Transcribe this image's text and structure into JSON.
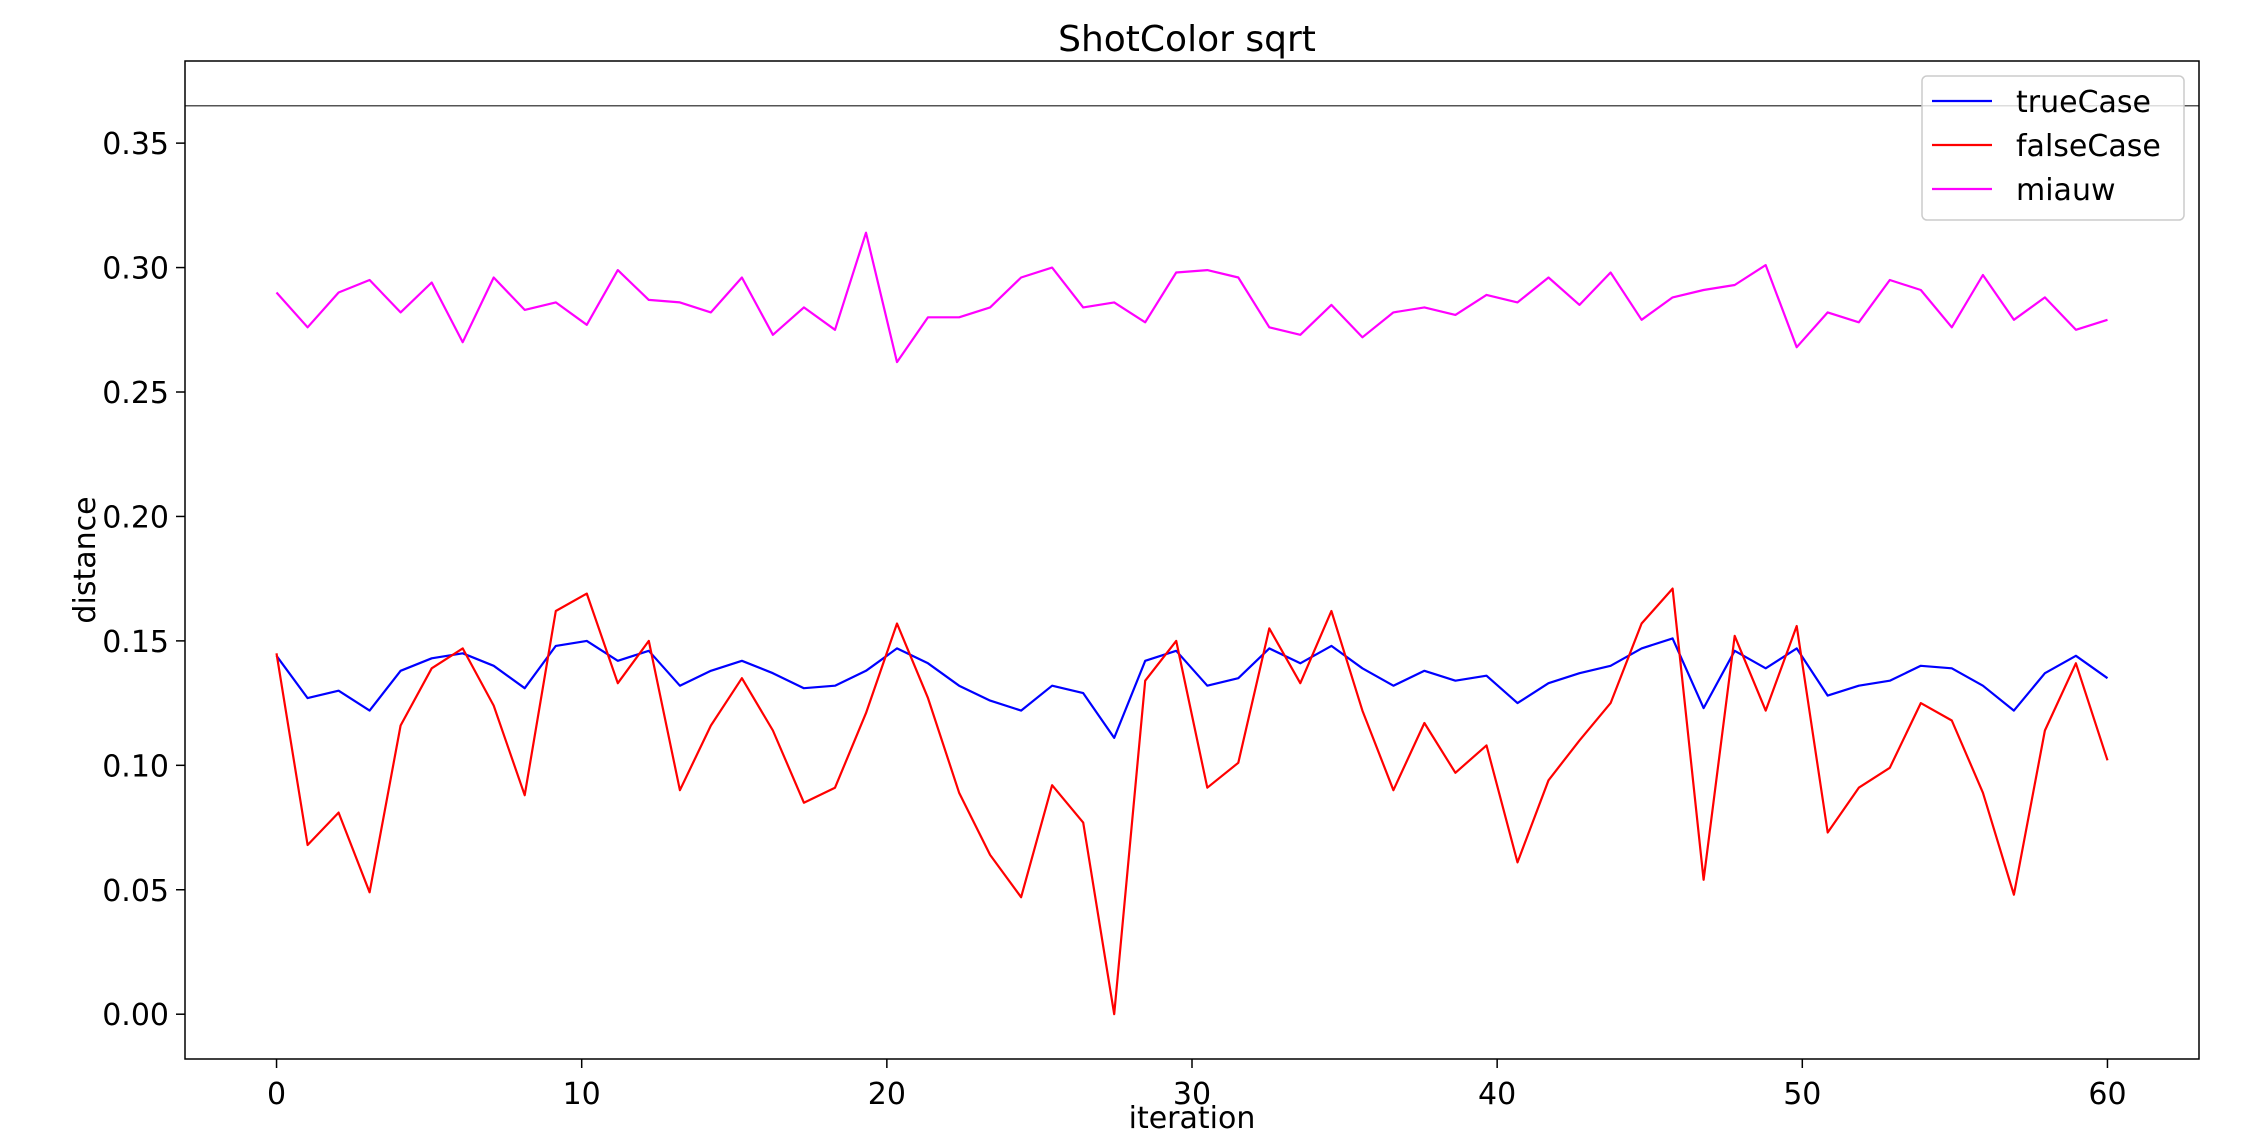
{
  "chart_data": {
    "type": "line",
    "title": "ShotColor sqrt",
    "xlabel": "iteration",
    "ylabel": "distance",
    "xlim": [
      -3,
      63
    ],
    "ylim": [
      -0.018,
      0.383
    ],
    "xticks": [
      0,
      10,
      20,
      30,
      40,
      50,
      60
    ],
    "xtick_labels": [
      "0",
      "10",
      "20",
      "30",
      "40",
      "50",
      "60"
    ],
    "yticks": [
      0.0,
      0.05,
      0.1,
      0.15,
      0.2,
      0.25,
      0.3,
      0.35
    ],
    "ytick_labels": [
      "0.00",
      "0.05",
      "0.10",
      "0.15",
      "0.20",
      "0.25",
      "0.30",
      "0.35"
    ],
    "grid": false,
    "legend_position": "top-right",
    "reference_line": {
      "y": 0.365,
      "color": "#555555"
    },
    "x": [
      0,
      1.0167,
      2.0333,
      3.05,
      4.0667,
      5.0833,
      6.1,
      7.1167,
      8.1333,
      9.15,
      10.1667,
      11.1833,
      12.2,
      13.2167,
      14.2333,
      15.25,
      16.2667,
      17.2833,
      18.3,
      19.3167,
      20.3333,
      21.35,
      22.3667,
      23.3833,
      24.4,
      25.4167,
      26.4333,
      27.45,
      28.4667,
      29.4833,
      30.5,
      31.5167,
      32.5333,
      33.55,
      34.5667,
      35.5833,
      36.6,
      37.6167,
      38.6333,
      39.65,
      40.6667,
      41.6833,
      42.7,
      43.7167,
      44.7333,
      45.75,
      46.7667,
      47.7833,
      48.8,
      49.8167,
      50.8333,
      51.85,
      52.8667,
      53.8833,
      54.9,
      55.9167,
      56.9333,
      57.95,
      58.9667,
      60
    ],
    "series": [
      {
        "name": "trueCase",
        "color": "#0000ff",
        "values": [
          0.144,
          0.127,
          0.13,
          0.122,
          0.138,
          0.143,
          0.145,
          0.14,
          0.131,
          0.148,
          0.15,
          0.142,
          0.146,
          0.132,
          0.138,
          0.142,
          0.137,
          0.131,
          0.132,
          0.138,
          0.147,
          0.141,
          0.132,
          0.126,
          0.122,
          0.132,
          0.129,
          0.111,
          0.142,
          0.146,
          0.132,
          0.135,
          0.147,
          0.141,
          0.148,
          0.139,
          0.132,
          0.138,
          0.134,
          0.136,
          0.125,
          0.133,
          0.137,
          0.14,
          0.147,
          0.151,
          0.123,
          0.146,
          0.139,
          0.147,
          0.128,
          0.132,
          0.134,
          0.14,
          0.139,
          0.132,
          0.122,
          0.137,
          0.144,
          0.135
        ]
      },
      {
        "name": "falseCase",
        "color": "#ff0000",
        "values": [
          0.145,
          0.068,
          0.081,
          0.049,
          0.116,
          0.139,
          0.147,
          0.124,
          0.088,
          0.162,
          0.169,
          0.133,
          0.15,
          0.09,
          0.116,
          0.135,
          0.114,
          0.085,
          0.091,
          0.121,
          0.157,
          0.127,
          0.089,
          0.064,
          0.047,
          0.092,
          0.077,
          0.0,
          0.134,
          0.15,
          0.091,
          0.101,
          0.155,
          0.133,
          0.162,
          0.122,
          0.09,
          0.117,
          0.097,
          0.108,
          0.061,
          0.094,
          0.11,
          0.125,
          0.157,
          0.171,
          0.054,
          0.152,
          0.122,
          0.156,
          0.073,
          0.091,
          0.099,
          0.125,
          0.118,
          0.089,
          0.048,
          0.114,
          0.141,
          0.102
        ]
      },
      {
        "name": "miauw",
        "color": "#ff00ff",
        "values": [
          0.29,
          0.276,
          0.29,
          0.295,
          0.282,
          0.294,
          0.27,
          0.296,
          0.283,
          0.286,
          0.277,
          0.299,
          0.287,
          0.286,
          0.282,
          0.296,
          0.273,
          0.284,
          0.275,
          0.314,
          0.262,
          0.28,
          0.28,
          0.284,
          0.296,
          0.3,
          0.284,
          0.286,
          0.278,
          0.298,
          0.299,
          0.296,
          0.276,
          0.273,
          0.285,
          0.272,
          0.282,
          0.284,
          0.281,
          0.289,
          0.286,
          0.296,
          0.285,
          0.298,
          0.279,
          0.288,
          0.291,
          0.293,
          0.301,
          0.268,
          0.282,
          0.278,
          0.295,
          0.291,
          0.276,
          0.297,
          0.279,
          0.288,
          0.275,
          0.279
        ]
      }
    ]
  }
}
